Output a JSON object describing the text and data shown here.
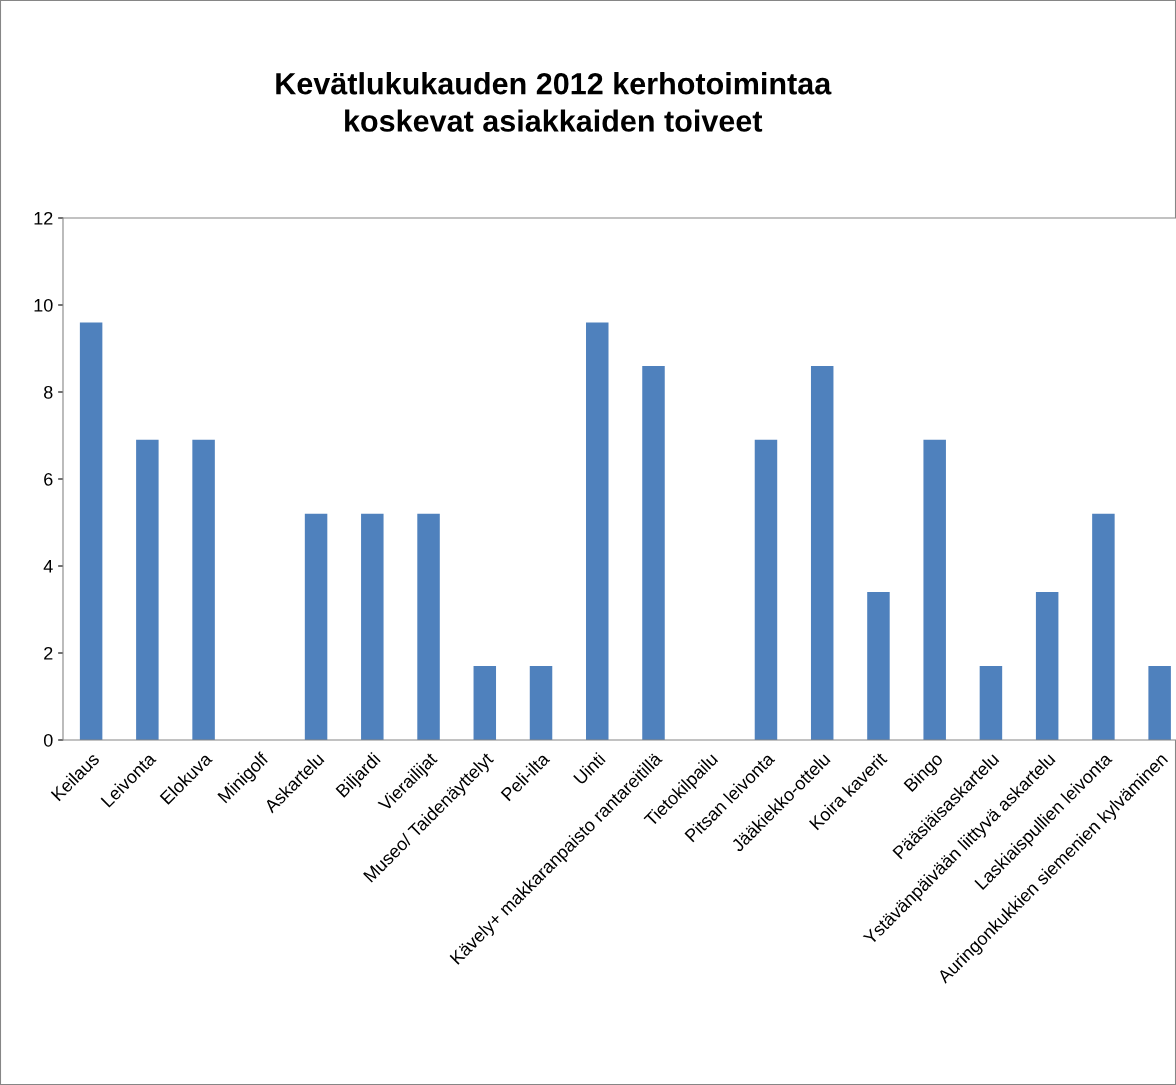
{
  "chart_data": {
    "type": "bar",
    "title": "Kevätlukukauden 2012 kerhotoimintaa\nkoskevat asiakkaiden toiveet",
    "categories": [
      "Keilaus",
      "Leivonta",
      "Elokuva",
      "Minigolf",
      "Askartelu",
      "Biljardi",
      "Vierailijat",
      "Museo/ Taidenäyttelyt",
      "Peli-ilta",
      "Uinti",
      "Kävely+ makkaranpaisto rantareitillä",
      "Tietokilpailu",
      "Pitsan leivonta",
      "Jääkiekko-ottelu",
      "Koira kaverit",
      "Bingo",
      "Pääsiäisaskartelu",
      "Ystävänpäivään liittyvä askartelu",
      "Laskiaispullien leivonta",
      "Auringonkukkien siemenien kylväminen"
    ],
    "values": [
      9.6,
      6.9,
      6.9,
      0,
      5.2,
      5.2,
      5.2,
      1.7,
      1.7,
      9.6,
      8.6,
      0,
      6.9,
      8.6,
      3.4,
      6.9,
      1.7,
      3.4,
      5.2,
      1.7
    ],
    "color": "#4f81bd",
    "ylim": [
      0,
      12
    ],
    "yticks": [
      0,
      2,
      4,
      6,
      8,
      10,
      12
    ],
    "grid": false,
    "legend": false
  }
}
